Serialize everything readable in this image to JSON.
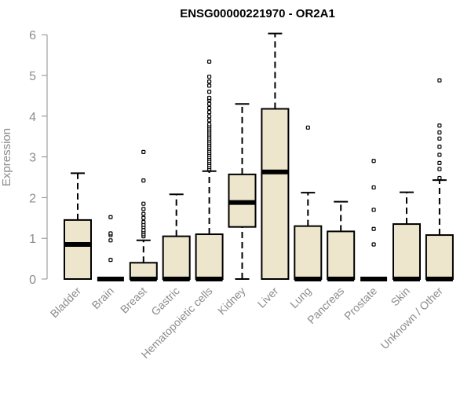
{
  "chart_data": {
    "type": "boxplot",
    "title": "ENSG00000221970 - OR2A1",
    "xlabel": "",
    "ylabel": "Expression",
    "ylim": [
      0,
      6
    ],
    "yticks": [
      0,
      1,
      2,
      3,
      4,
      5,
      6
    ],
    "grid": false,
    "box_color": "#ede6cc",
    "categories": [
      "Bladder",
      "Brain",
      "Breast",
      "Gastric",
      "Hematopoietic cells",
      "Kidney",
      "Liver",
      "Lung",
      "Pancreas",
      "Prostate",
      "Skin",
      "Unknown / Other"
    ],
    "boxes": [
      {
        "category": "Bladder",
        "q1": 0,
        "median": 0.85,
        "q3": 1.45,
        "whisker_low": 0,
        "whisker_high": 2.6,
        "outliers": []
      },
      {
        "category": "Brain",
        "q1": 0,
        "median": 0,
        "q3": 0,
        "whisker_low": 0,
        "whisker_high": 0,
        "outliers": [
          0.47,
          0.95,
          1.08,
          1.12,
          1.52
        ]
      },
      {
        "category": "Breast",
        "q1": 0,
        "median": 0,
        "q3": 0.4,
        "whisker_low": 0,
        "whisker_high": 0.95,
        "outliers": [
          1.05,
          1.1,
          1.15,
          1.2,
          1.28,
          1.33,
          1.4,
          1.5,
          1.6,
          1.72,
          1.85,
          2.42,
          3.12
        ]
      },
      {
        "category": "Gastric",
        "q1": 0,
        "median": 0,
        "q3": 1.05,
        "whisker_low": 0,
        "whisker_high": 2.08,
        "outliers": []
      },
      {
        "category": "Hematopoietic cells",
        "q1": 0,
        "median": 0,
        "q3": 1.1,
        "whisker_low": 0,
        "whisker_high": 2.65,
        "outliers": [
          2.7,
          2.75,
          2.8,
          2.85,
          2.9,
          2.95,
          3.0,
          3.05,
          3.1,
          3.15,
          3.2,
          3.25,
          3.3,
          3.35,
          3.4,
          3.45,
          3.5,
          3.55,
          3.6,
          3.65,
          3.7,
          3.75,
          3.8,
          3.9,
          4.0,
          4.1,
          4.2,
          4.3,
          4.4,
          4.45,
          4.6,
          4.75,
          4.85,
          4.97,
          5.34
        ]
      },
      {
        "category": "Kidney",
        "q1": 1.28,
        "median": 1.88,
        "q3": 2.57,
        "whisker_low": 0,
        "whisker_high": 4.3,
        "outliers": []
      },
      {
        "category": "Liver",
        "q1": 0,
        "median": 2.63,
        "q3": 4.18,
        "whisker_low": 0,
        "whisker_high": 6.03,
        "outliers": []
      },
      {
        "category": "Lung",
        "q1": 0,
        "median": 0,
        "q3": 1.3,
        "whisker_low": 0,
        "whisker_high": 2.12,
        "outliers": [
          3.72
        ]
      },
      {
        "category": "Pancreas",
        "q1": 0,
        "median": 0,
        "q3": 1.17,
        "whisker_low": 0,
        "whisker_high": 1.9,
        "outliers": []
      },
      {
        "category": "Prostate",
        "q1": 0,
        "median": 0,
        "q3": 0,
        "whisker_low": 0,
        "whisker_high": 0,
        "outliers": [
          0.85,
          1.23,
          1.7,
          2.25,
          2.9
        ]
      },
      {
        "category": "Skin",
        "q1": 0,
        "median": 0,
        "q3": 1.35,
        "whisker_low": 0,
        "whisker_high": 2.13,
        "outliers": []
      },
      {
        "category": "Unknown / Other",
        "q1": 0,
        "median": 0,
        "q3": 1.08,
        "whisker_low": 0,
        "whisker_high": 2.43,
        "outliers": [
          2.48,
          2.7,
          2.85,
          3.05,
          3.25,
          3.45,
          3.6,
          3.77,
          4.88
        ]
      }
    ]
  }
}
